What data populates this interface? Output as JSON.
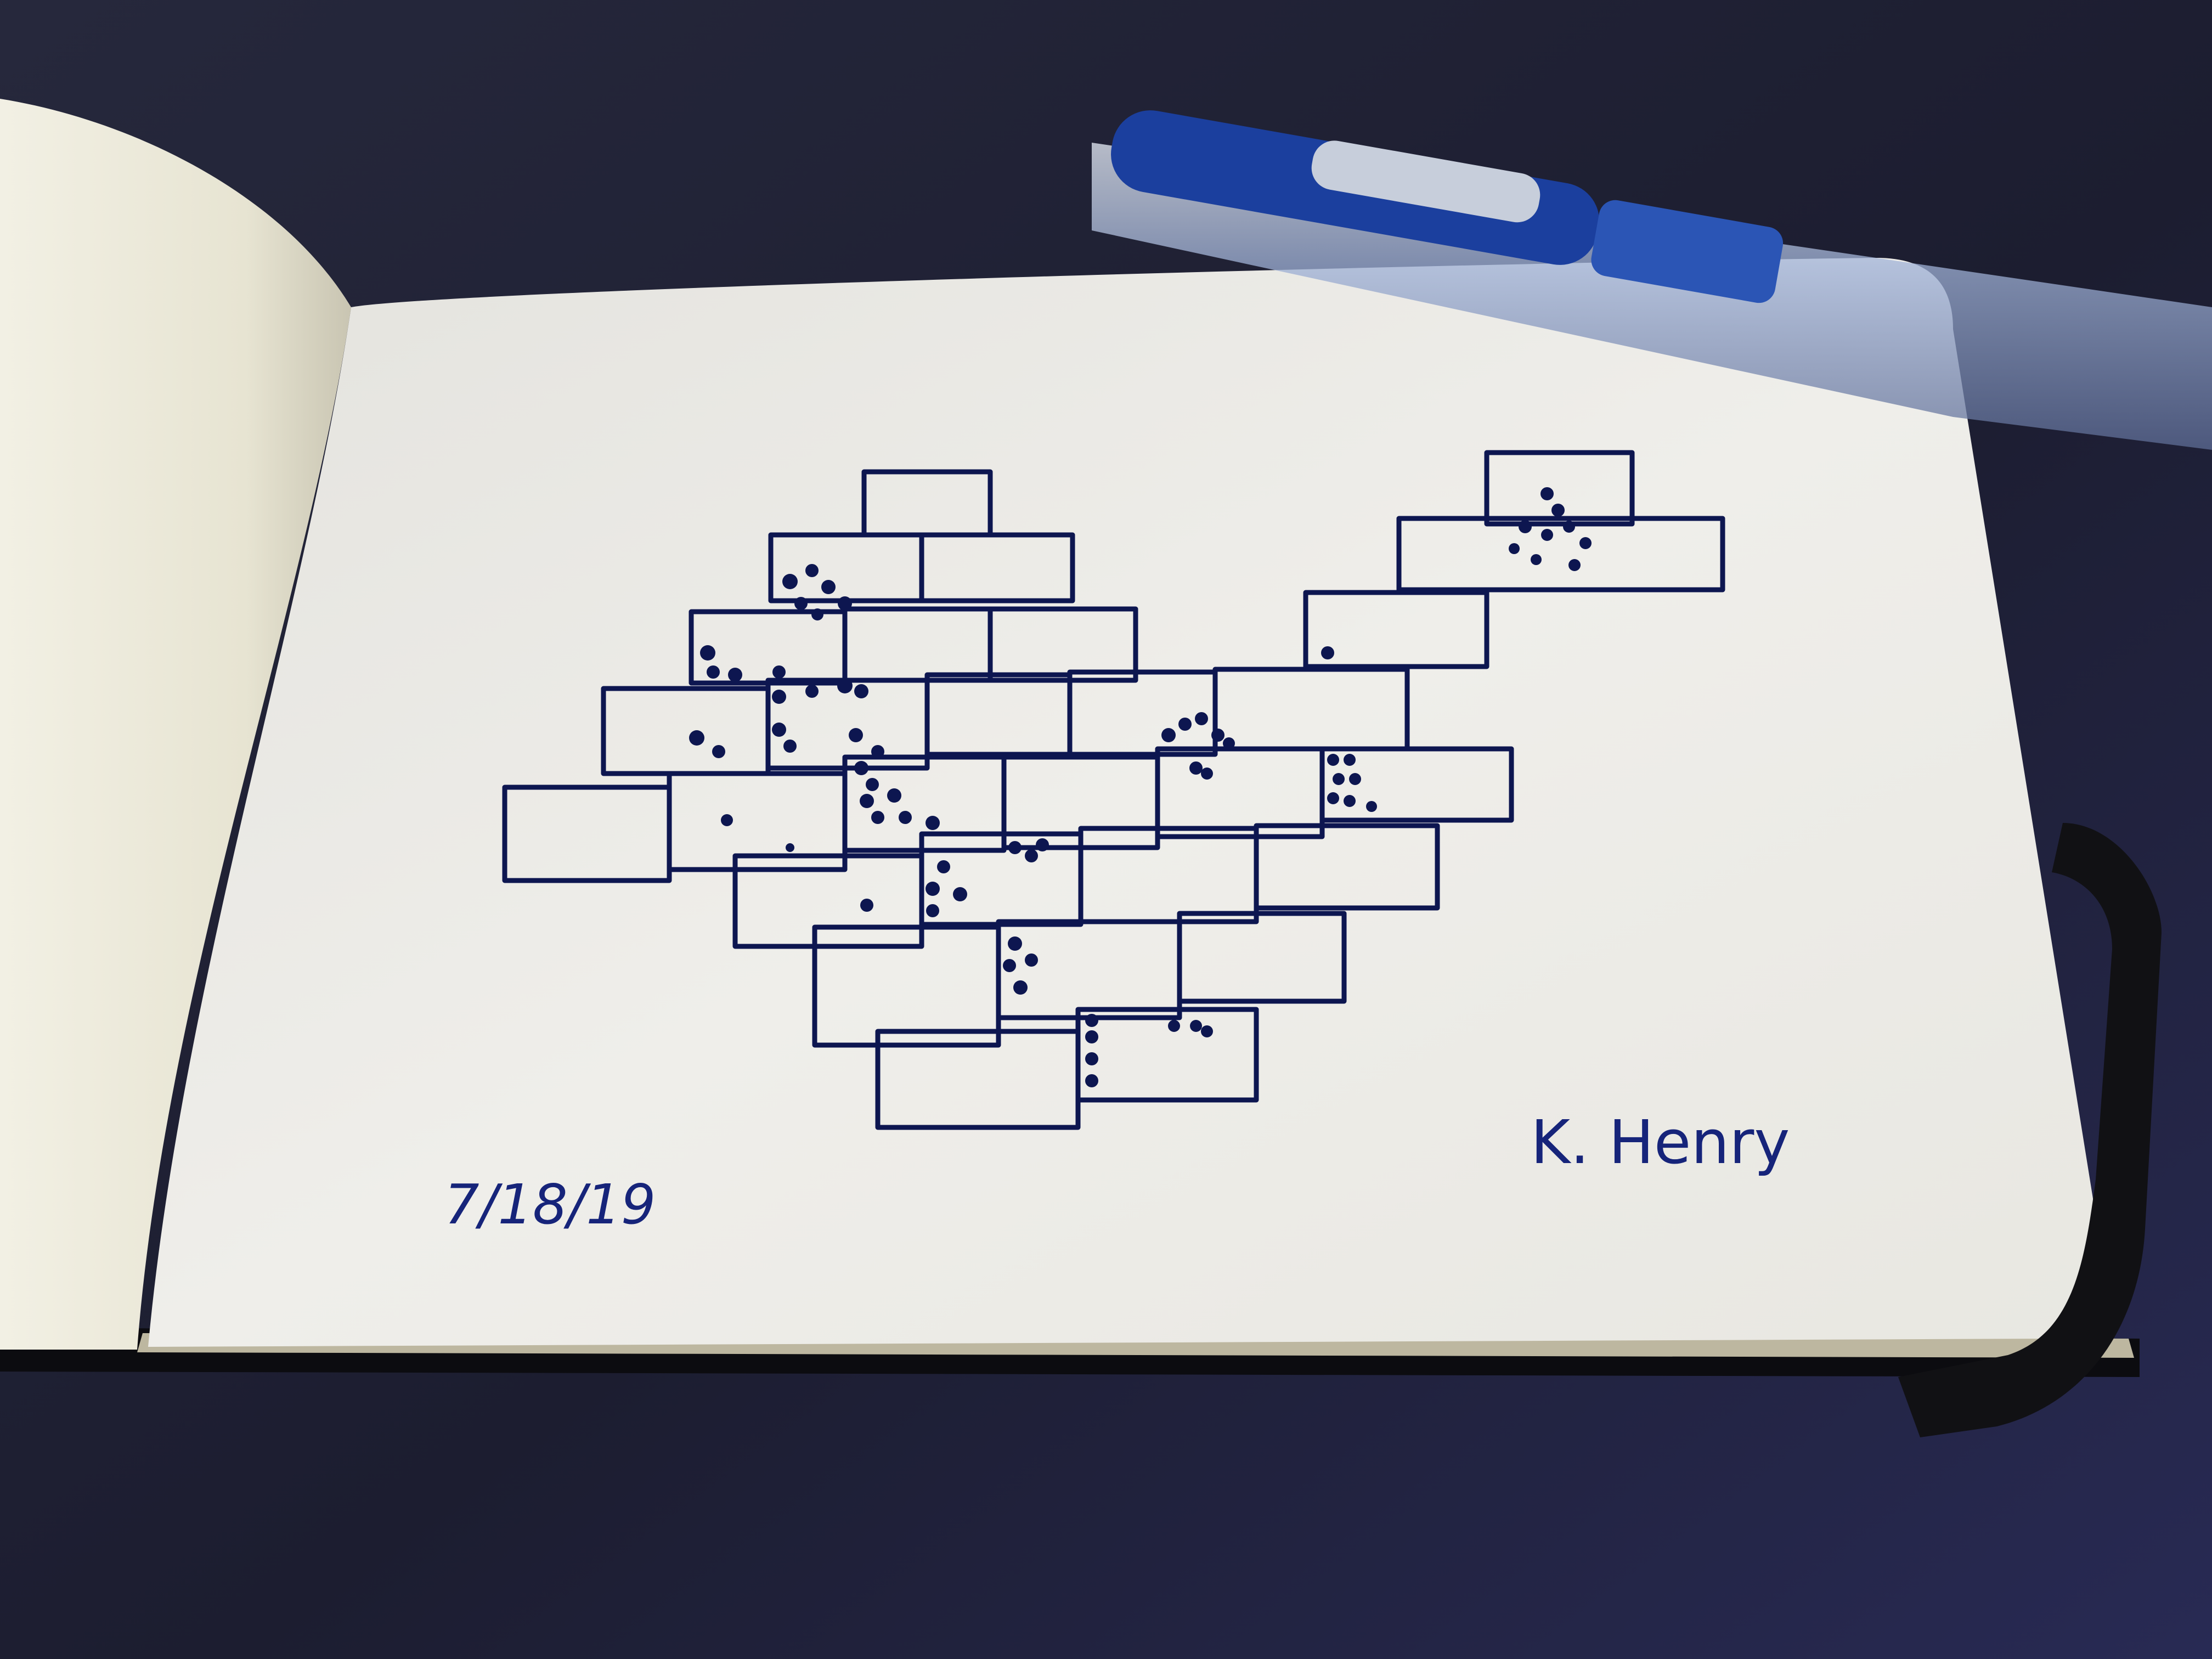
{
  "scene": {
    "description_free": true,
    "ink_color": "#0d1650",
    "desk_color": "#1a1b2c",
    "page_color": "#ecebe5",
    "left_page_color": "#e9e6d6",
    "strap_color": "#111114",
    "pen_accent_color": "#1b3f9e"
  },
  "sketch": {
    "date": "7/18/19",
    "signature": "K. Henry"
  },
  "icons": {
    "pen": "pen-icon",
    "strap": "elastic-strap"
  }
}
